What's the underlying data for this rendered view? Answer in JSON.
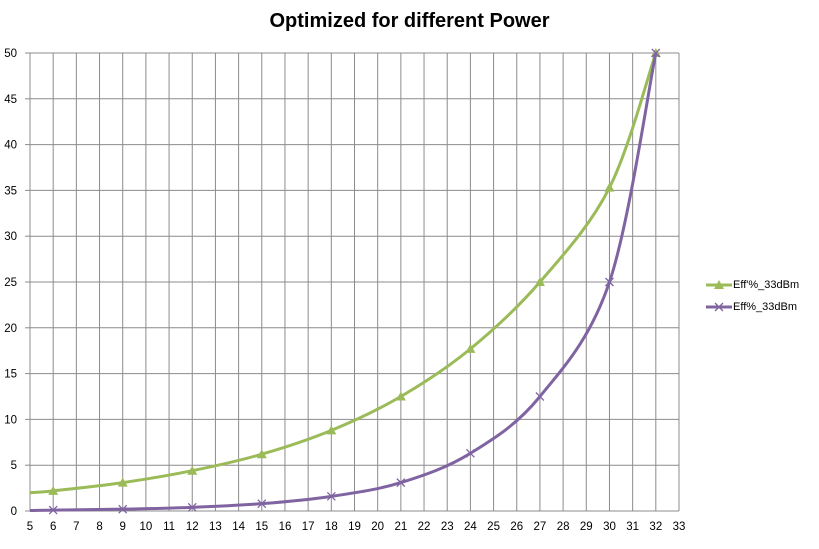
{
  "chart_data": {
    "type": "line",
    "title": "Optimized for different Power",
    "xlabel": "",
    "ylabel": "",
    "xlim": [
      5,
      33
    ],
    "ylim": [
      0,
      50
    ],
    "x_ticks": [
      5,
      6,
      7,
      8,
      9,
      10,
      11,
      12,
      13,
      14,
      15,
      16,
      17,
      18,
      19,
      20,
      21,
      22,
      23,
      24,
      25,
      26,
      27,
      28,
      29,
      30,
      31,
      32,
      33
    ],
    "y_ticks": [
      0,
      5,
      10,
      15,
      20,
      25,
      30,
      35,
      40,
      45,
      50
    ],
    "grid": true,
    "legend_position": "right",
    "series": [
      {
        "name": "Eff'%_33dBm",
        "color": "#9bbb59",
        "marker": "triangle",
        "points": [
          [
            5,
            2.0
          ],
          [
            6,
            2.2
          ],
          [
            9,
            3.1
          ],
          [
            12,
            4.4
          ],
          [
            15,
            6.2
          ],
          [
            18,
            8.8
          ],
          [
            21,
            12.5
          ],
          [
            24,
            17.7
          ],
          [
            27,
            25.0
          ],
          [
            30,
            35.3
          ],
          [
            32,
            50.0
          ]
        ],
        "marker_x": [
          6,
          9,
          12,
          15,
          18,
          21,
          24,
          27,
          30,
          32
        ]
      },
      {
        "name": "Eff%_33dBm",
        "color": "#8064a2",
        "marker": "x",
        "points": [
          [
            5,
            0.05
          ],
          [
            6,
            0.1
          ],
          [
            9,
            0.2
          ],
          [
            12,
            0.4
          ],
          [
            15,
            0.8
          ],
          [
            18,
            1.6
          ],
          [
            21,
            3.1
          ],
          [
            24,
            6.3
          ],
          [
            27,
            12.5
          ],
          [
            30,
            25.0
          ],
          [
            32,
            50.0
          ]
        ],
        "marker_x": [
          6,
          9,
          12,
          15,
          18,
          21,
          24,
          27,
          30,
          32
        ]
      }
    ]
  }
}
